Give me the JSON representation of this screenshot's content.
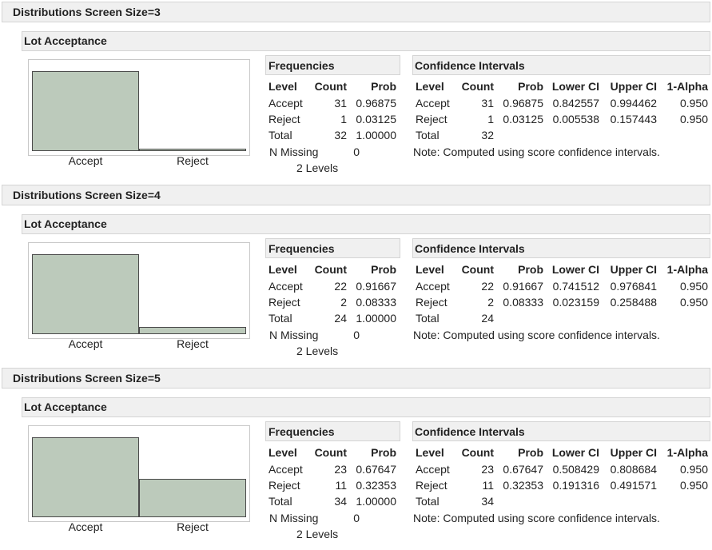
{
  "sections": [
    {
      "title": "Distributions Screen Size=3",
      "subtitle": "Lot Acceptance",
      "chart": {
        "type": "bar",
        "categories": [
          "Accept",
          "Reject"
        ],
        "values": [
          31,
          1
        ]
      },
      "frequencies": {
        "title": "Frequencies",
        "columns": [
          "Level",
          "Count",
          "Prob"
        ],
        "rows": [
          [
            "Accept",
            31,
            "0.96875"
          ],
          [
            "Reject",
            1,
            "0.03125"
          ],
          [
            "Total",
            32,
            "1.00000"
          ]
        ],
        "n_missing_label": "N Missing",
        "n_missing": 0,
        "levels": "2 Levels"
      },
      "confidence_intervals": {
        "title": "Confidence Intervals",
        "columns": [
          "Level",
          "Count",
          "Prob",
          "Lower CI",
          "Upper CI",
          "1-Alpha"
        ],
        "rows": [
          [
            "Accept",
            31,
            "0.96875",
            "0.842557",
            "0.994462",
            "0.950"
          ],
          [
            "Reject",
            1,
            "0.03125",
            "0.005538",
            "0.157443",
            "0.950"
          ],
          [
            "Total",
            32
          ]
        ],
        "note": "Note: Computed using score confidence intervals."
      }
    },
    {
      "title": "Distributions Screen Size=4",
      "subtitle": "Lot Acceptance",
      "chart": {
        "type": "bar",
        "categories": [
          "Accept",
          "Reject"
        ],
        "values": [
          22,
          2
        ]
      },
      "frequencies": {
        "title": "Frequencies",
        "columns": [
          "Level",
          "Count",
          "Prob"
        ],
        "rows": [
          [
            "Accept",
            22,
            "0.91667"
          ],
          [
            "Reject",
            2,
            "0.08333"
          ],
          [
            "Total",
            24,
            "1.00000"
          ]
        ],
        "n_missing_label": "N Missing",
        "n_missing": 0,
        "levels": "2 Levels"
      },
      "confidence_intervals": {
        "title": "Confidence Intervals",
        "columns": [
          "Level",
          "Count",
          "Prob",
          "Lower CI",
          "Upper CI",
          "1-Alpha"
        ],
        "rows": [
          [
            "Accept",
            22,
            "0.91667",
            "0.741512",
            "0.976841",
            "0.950"
          ],
          [
            "Reject",
            2,
            "0.08333",
            "0.023159",
            "0.258488",
            "0.950"
          ],
          [
            "Total",
            24
          ]
        ],
        "note": "Note: Computed using score confidence intervals."
      }
    },
    {
      "title": "Distributions Screen Size=5",
      "subtitle": "Lot Acceptance",
      "chart": {
        "type": "bar",
        "categories": [
          "Accept",
          "Reject"
        ],
        "values": [
          23,
          11
        ]
      },
      "frequencies": {
        "title": "Frequencies",
        "columns": [
          "Level",
          "Count",
          "Prob"
        ],
        "rows": [
          [
            "Accept",
            23,
            "0.67647"
          ],
          [
            "Reject",
            11,
            "0.32353"
          ],
          [
            "Total",
            34,
            "1.00000"
          ]
        ],
        "n_missing_label": "N Missing",
        "n_missing": 0,
        "levels": "2 Levels"
      },
      "confidence_intervals": {
        "title": "Confidence Intervals",
        "columns": [
          "Level",
          "Count",
          "Prob",
          "Lower CI",
          "Upper CI",
          "1-Alpha"
        ],
        "rows": [
          [
            "Accept",
            23,
            "0.67647",
            "0.508429",
            "0.808684",
            "0.950"
          ],
          [
            "Reject",
            11,
            "0.32353",
            "0.191316",
            "0.491571",
            "0.950"
          ],
          [
            "Total",
            34
          ]
        ],
        "note": "Note: Computed using score confidence intervals."
      }
    }
  ]
}
